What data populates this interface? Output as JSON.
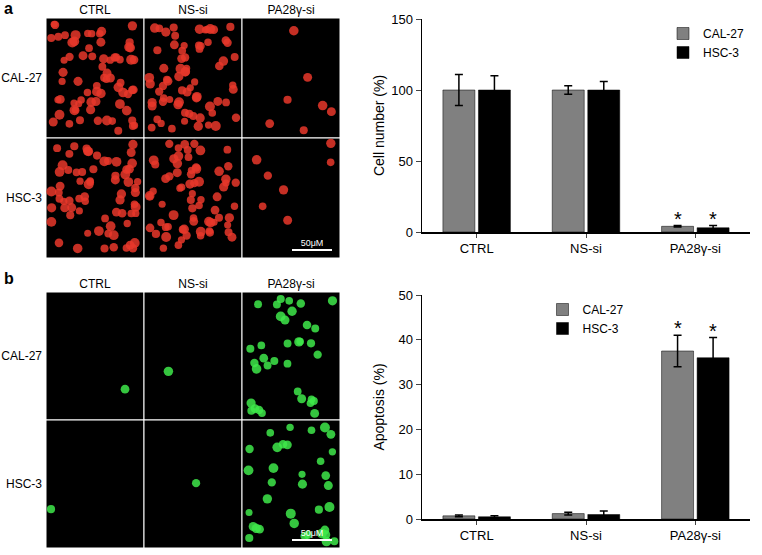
{
  "panels": [
    {
      "label": "a",
      "columns": [
        "CTRL",
        "NS-si",
        "PA28γ-si"
      ],
      "rows": [
        "CAL-27",
        "HSC-3"
      ],
      "scale_bar": "50μM",
      "color": "#e8372a"
    },
    {
      "label": "b",
      "columns": [
        "CTRL",
        "NS-si",
        "PA28γ-si"
      ],
      "rows": [
        "CAL-27",
        "HSC-3"
      ],
      "scale_bar": "50μM",
      "color": "#3ee84a"
    }
  ],
  "chart_data": [
    {
      "type": "bar",
      "categories": [
        "CTRL",
        "NS-si",
        "PA28γ-si"
      ],
      "y_label": "Cell number (%)",
      "ylim": [
        0,
        150
      ],
      "yticks": [
        0,
        50,
        100,
        150
      ],
      "legend": "top right",
      "grid": false,
      "series": [
        {
          "name": "CAL-27",
          "color": "#808080",
          "values": [
            100,
            100,
            4
          ],
          "errors": [
            11,
            3,
            0.5
          ]
        },
        {
          "name": "HSC-3",
          "color": "#000000",
          "values": [
            100,
            100,
            3
          ],
          "errors": [
            10,
            6,
            1.5
          ]
        }
      ],
      "annotations": [
        {
          "text": "*",
          "category": "PA28γ-si",
          "series": "CAL-27"
        },
        {
          "text": "*",
          "category": "PA28γ-si",
          "series": "HSC-3"
        }
      ]
    },
    {
      "type": "bar",
      "categories": [
        "CTRL",
        "NS-si",
        "PA28γ-si"
      ],
      "y_label": "Apoptosis (%)",
      "ylim": [
        0,
        50
      ],
      "yticks": [
        0,
        10,
        20,
        30,
        40,
        50
      ],
      "legend": "top",
      "grid": false,
      "series": [
        {
          "name": "CAL-27",
          "color": "#808080",
          "values": [
            0.7,
            1.2,
            37.5
          ],
          "errors": [
            0.2,
            0.3,
            3.5
          ]
        },
        {
          "name": "HSC-3",
          "color": "#000000",
          "values": [
            0.5,
            1.0,
            36
          ],
          "errors": [
            0.2,
            0.8,
            4.5
          ]
        }
      ],
      "annotations": [
        {
          "text": "*",
          "category": "PA28γ-si",
          "series": "CAL-27"
        },
        {
          "text": "*",
          "category": "PA28γ-si",
          "series": "HSC-3"
        }
      ]
    }
  ]
}
